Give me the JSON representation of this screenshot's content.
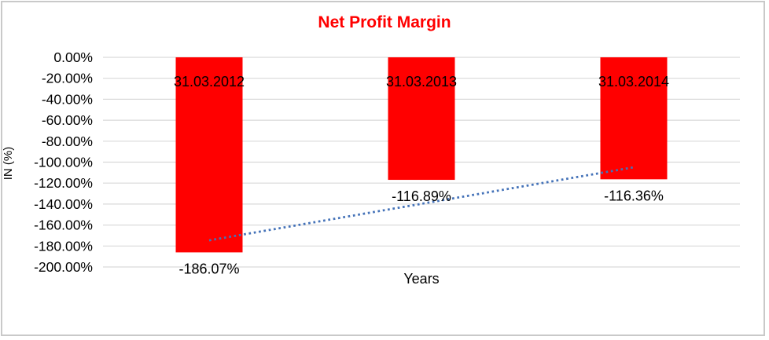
{
  "chart_data": {
    "type": "bar",
    "title": "Net Profit Margin",
    "title_color": "#ff0000",
    "xlabel": "Years",
    "ylabel": "IN (%)",
    "categories": [
      "31.03.2012",
      "31.03.2013",
      "31.03.2014"
    ],
    "values": [
      -186.07,
      -116.89,
      -116.36
    ],
    "data_labels": [
      "-186.07%",
      "-116.89%",
      "-116.36%"
    ],
    "bar_color": "#ff0000",
    "ylim": [
      -200,
      0
    ],
    "ytick_step": 20,
    "ytick_labels": [
      "0.00%",
      "-20.00%",
      "-40.00%",
      "-60.00%",
      "-80.00%",
      "-100.00%",
      "-120.00%",
      "-140.00%",
      "-160.00%",
      "-180.00%",
      "-200.00%"
    ],
    "grid": true,
    "gridline_color": "#d9d9d9",
    "frame_color": "#c9c9c9",
    "legend": "none",
    "trendline": {
      "style": "dotted",
      "color": "#4472b8",
      "start_value": -174.6,
      "end_value": -104.9
    }
  }
}
